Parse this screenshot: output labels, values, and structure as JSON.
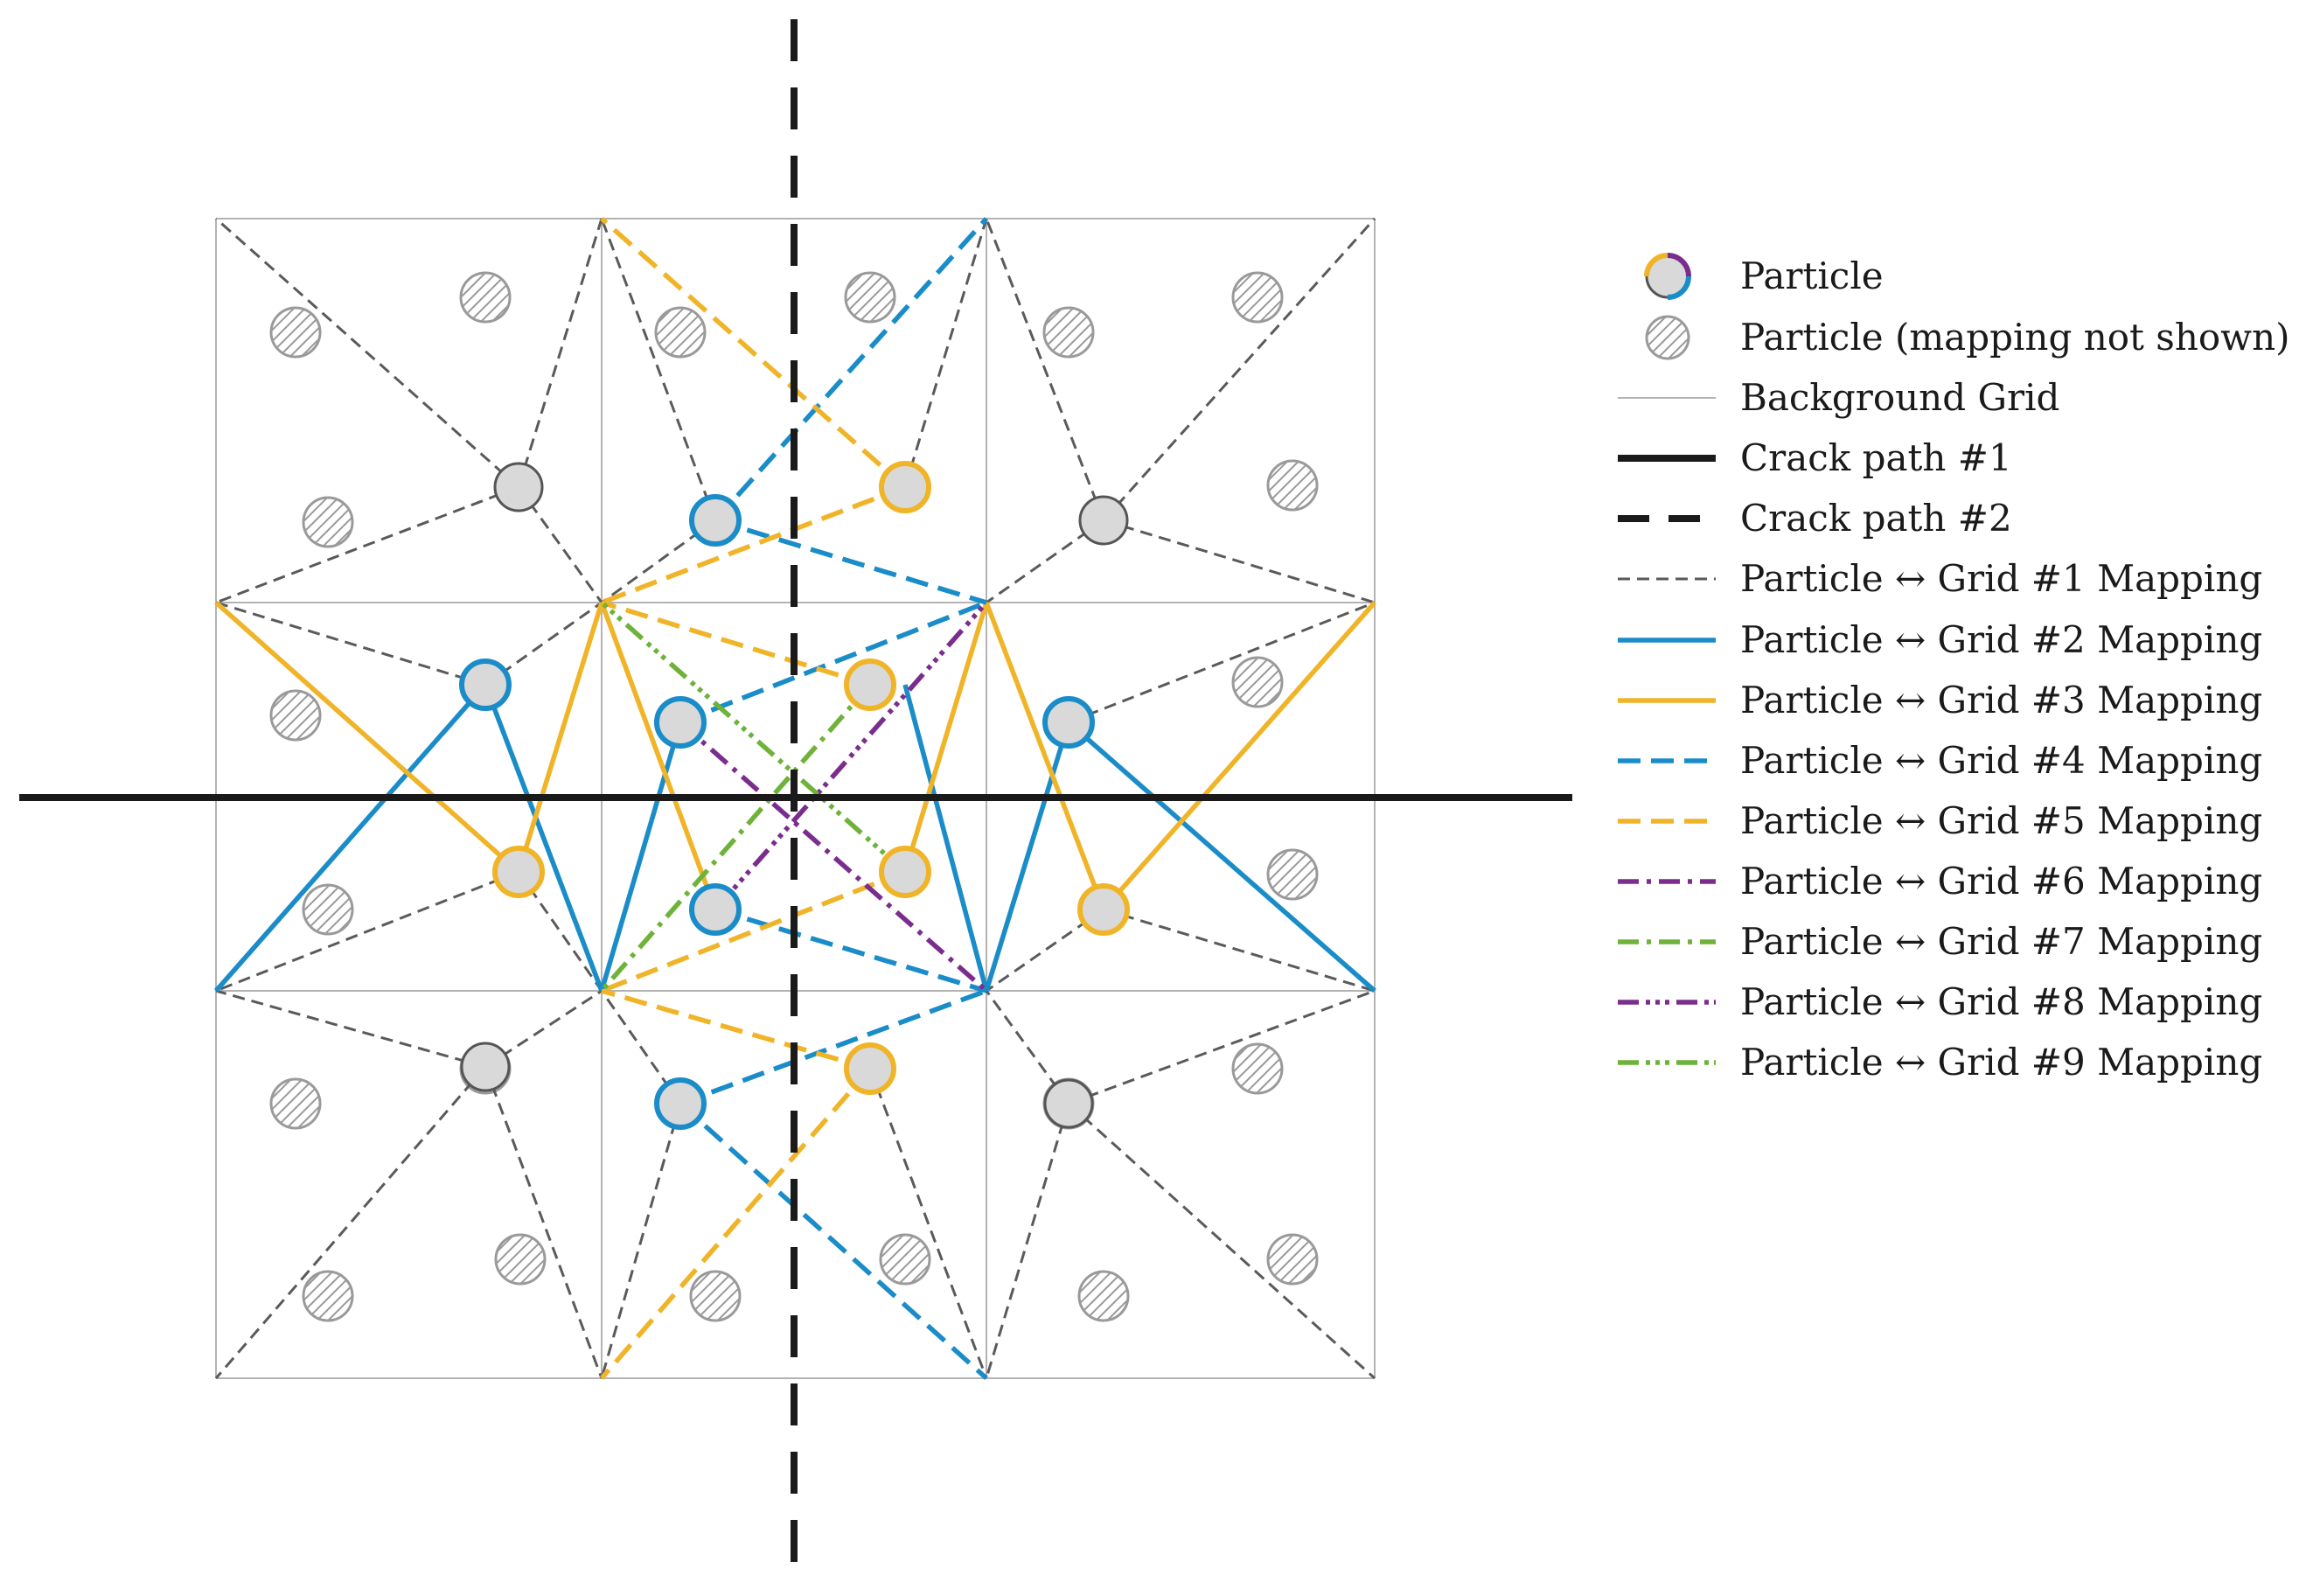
{
  "colors": {
    "background_grid": "#b3b3b3",
    "grid1_mapping": "#5a5a5a",
    "crack": "#1a1a1a",
    "blue": "#1a8cc8",
    "yellow": "#f0b429",
    "purple": "#7b2d8e",
    "green": "#6fb23a",
    "particle_fill": "#d9d9d9",
    "particle_edge": "#555555",
    "hatched_edge": "#9a9a9a"
  },
  "legend": {
    "items": [
      {
        "id": "particle",
        "label": "Particle",
        "symbol": "particle"
      },
      {
        "id": "particle-hidden",
        "label": "Particle (mapping not shown)",
        "symbol": "hatched"
      },
      {
        "id": "background-grid",
        "label": "Background Grid",
        "symbol": "grid-line"
      },
      {
        "id": "crack-1",
        "label": "Crack path #1",
        "symbol": "crack-solid"
      },
      {
        "id": "crack-2",
        "label": "Crack path #2",
        "symbol": "crack-dashed"
      },
      {
        "id": "map-1",
        "label": "Particle ↔ Grid #1 Mapping",
        "symbol": "map1"
      },
      {
        "id": "map-2",
        "label": "Particle ↔ Grid #2 Mapping",
        "symbol": "map2"
      },
      {
        "id": "map-3",
        "label": "Particle ↔ Grid #3 Mapping",
        "symbol": "map3"
      },
      {
        "id": "map-4",
        "label": "Particle ↔ Grid #4 Mapping",
        "symbol": "map4"
      },
      {
        "id": "map-5",
        "label": "Particle ↔ Grid #5 Mapping",
        "symbol": "map5"
      },
      {
        "id": "map-6",
        "label": "Particle ↔ Grid #6 Mapping",
        "symbol": "map6"
      },
      {
        "id": "map-7",
        "label": "Particle ↔ Grid #7 Mapping",
        "symbol": "map7"
      },
      {
        "id": "map-8",
        "label": "Particle ↔ Grid #8 Mapping",
        "symbol": "map8"
      },
      {
        "id": "map-9",
        "label": "Particle ↔ Grid #9 Mapping",
        "symbol": "map9"
      }
    ]
  }
}
